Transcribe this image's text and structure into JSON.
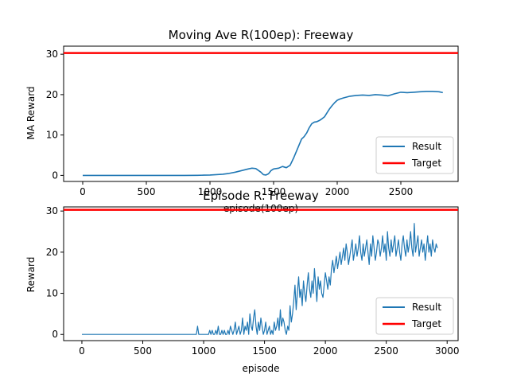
{
  "chart_data": [
    {
      "type": "line",
      "title": "Moving Ave R(100ep): Freeway",
      "xlabel": "episode(100ep)",
      "ylabel": "MA Reward",
      "xlim": [
        -150,
        2950
      ],
      "ylim": [
        -1.5,
        32
      ],
      "xticks": [
        0,
        500,
        1000,
        1500,
        2000,
        2500
      ],
      "yticks": [
        0,
        10,
        20,
        30
      ],
      "legend_position": "lower-right",
      "target": {
        "name": "Target",
        "value": 30.3,
        "color": "#ff0000"
      },
      "series": [
        {
          "name": "Result",
          "color": "#1f77b4",
          "x": [
            0,
            200,
            400,
            600,
            800,
            900,
            950,
            1000,
            1050,
            1100,
            1150,
            1200,
            1250,
            1300,
            1330,
            1360,
            1400,
            1420,
            1440,
            1460,
            1480,
            1500,
            1540,
            1570,
            1600,
            1630,
            1660,
            1680,
            1700,
            1720,
            1740,
            1760,
            1780,
            1800,
            1820,
            1840,
            1860,
            1880,
            1900,
            1920,
            1940,
            1960,
            1980,
            2000,
            2020,
            2050,
            2100,
            2150,
            2200,
            2250,
            2300,
            2350,
            2400,
            2450,
            2500,
            2550,
            2600,
            2650,
            2700,
            2750,
            2800,
            2830
          ],
          "values": [
            0,
            0,
            0,
            0,
            0,
            0.02,
            0.05,
            0.1,
            0.2,
            0.3,
            0.5,
            0.8,
            1.2,
            1.6,
            1.8,
            1.7,
            0.8,
            0.2,
            0.1,
            0.4,
            1.2,
            1.6,
            1.8,
            2.2,
            1.9,
            2.5,
            4.5,
            6.0,
            7.5,
            9.0,
            9.6,
            10.5,
            11.8,
            12.8,
            13.2,
            13.3,
            13.6,
            14.0,
            14.5,
            15.5,
            16.5,
            17.3,
            18.0,
            18.6,
            18.9,
            19.2,
            19.6,
            19.8,
            19.9,
            19.8,
            20.0,
            19.9,
            19.7,
            20.2,
            20.6,
            20.5,
            20.6,
            20.7,
            20.8,
            20.8,
            20.7,
            20.5
          ]
        }
      ]
    },
    {
      "type": "line",
      "title": "Episode R: Freeway",
      "xlabel": "episode",
      "ylabel": "Reward",
      "xlim": [
        -150,
        3090
      ],
      "ylim": [
        -1.5,
        31
      ],
      "xticks": [
        0,
        500,
        1000,
        1500,
        2000,
        2500,
        3000
      ],
      "yticks": [
        0,
        10,
        20,
        30
      ],
      "legend_position": "lower-right",
      "target": {
        "name": "Target",
        "value": 30.3,
        "color": "#ff0000"
      },
      "series": [
        {
          "name": "Result",
          "color": "#1f77b4",
          "x_start": 0,
          "x_step": 10,
          "values": [
            0,
            0,
            0,
            0,
            0,
            0,
            0,
            0,
            0,
            0,
            0,
            0,
            0,
            0,
            0,
            0,
            0,
            0,
            0,
            0,
            0,
            0,
            0,
            0,
            0,
            0,
            0,
            0,
            0,
            0,
            0,
            0,
            0,
            0,
            0,
            0,
            0,
            0,
            0,
            0,
            0,
            0,
            0,
            0,
            0,
            0,
            0,
            0,
            0,
            0,
            0,
            0,
            0,
            0,
            0,
            0,
            0,
            0,
            0,
            0,
            0,
            0,
            0,
            0,
            0,
            0,
            0,
            0,
            0,
            0,
            0,
            0,
            0,
            0,
            0,
            0,
            0,
            0,
            0,
            0,
            0,
            0,
            0,
            0,
            0,
            0,
            0,
            0,
            0,
            0,
            0,
            0,
            0,
            0,
            0,
            2,
            0,
            0,
            0,
            0,
            0,
            0,
            0,
            0,
            0,
            1,
            0,
            1,
            0,
            0,
            1,
            0,
            2,
            0,
            0,
            1,
            0,
            1,
            0,
            0,
            1,
            0,
            2,
            1,
            0,
            1,
            3,
            0,
            1,
            2,
            0,
            1,
            4,
            0,
            2,
            1,
            3,
            0,
            5,
            2,
            1,
            4,
            6,
            2,
            0,
            3,
            1,
            4,
            2,
            0,
            1,
            3,
            0,
            1,
            2,
            0,
            1,
            0,
            3,
            1,
            2,
            4,
            1,
            6,
            2,
            4,
            3,
            1,
            0,
            2,
            1,
            7,
            3,
            5,
            8,
            12,
            6,
            10,
            14,
            9,
            11,
            7,
            13,
            10,
            8,
            12,
            15,
            11,
            9,
            13,
            10,
            16,
            12,
            8,
            14,
            11,
            13,
            10,
            9,
            12,
            15,
            13,
            11,
            14,
            12,
            16,
            18,
            15,
            17,
            19,
            16,
            18,
            20,
            17,
            19,
            21,
            18,
            22,
            20,
            17,
            19,
            21,
            23,
            18,
            20,
            22,
            19,
            21,
            24,
            20,
            18,
            22,
            19,
            21,
            23,
            20,
            17,
            22,
            19,
            24,
            21,
            18,
            20,
            23,
            22,
            19,
            21,
            24,
            20,
            22,
            18,
            25,
            21,
            19,
            23,
            20,
            22,
            24,
            19,
            21,
            23,
            20,
            18,
            22,
            24,
            21,
            19,
            23,
            20,
            22,
            25,
            21,
            19,
            27,
            20,
            22,
            24,
            19,
            21,
            23,
            20,
            22,
            18,
            21,
            24,
            20,
            22,
            19,
            23,
            21,
            20,
            22,
            21
          ]
        }
      ]
    }
  ]
}
